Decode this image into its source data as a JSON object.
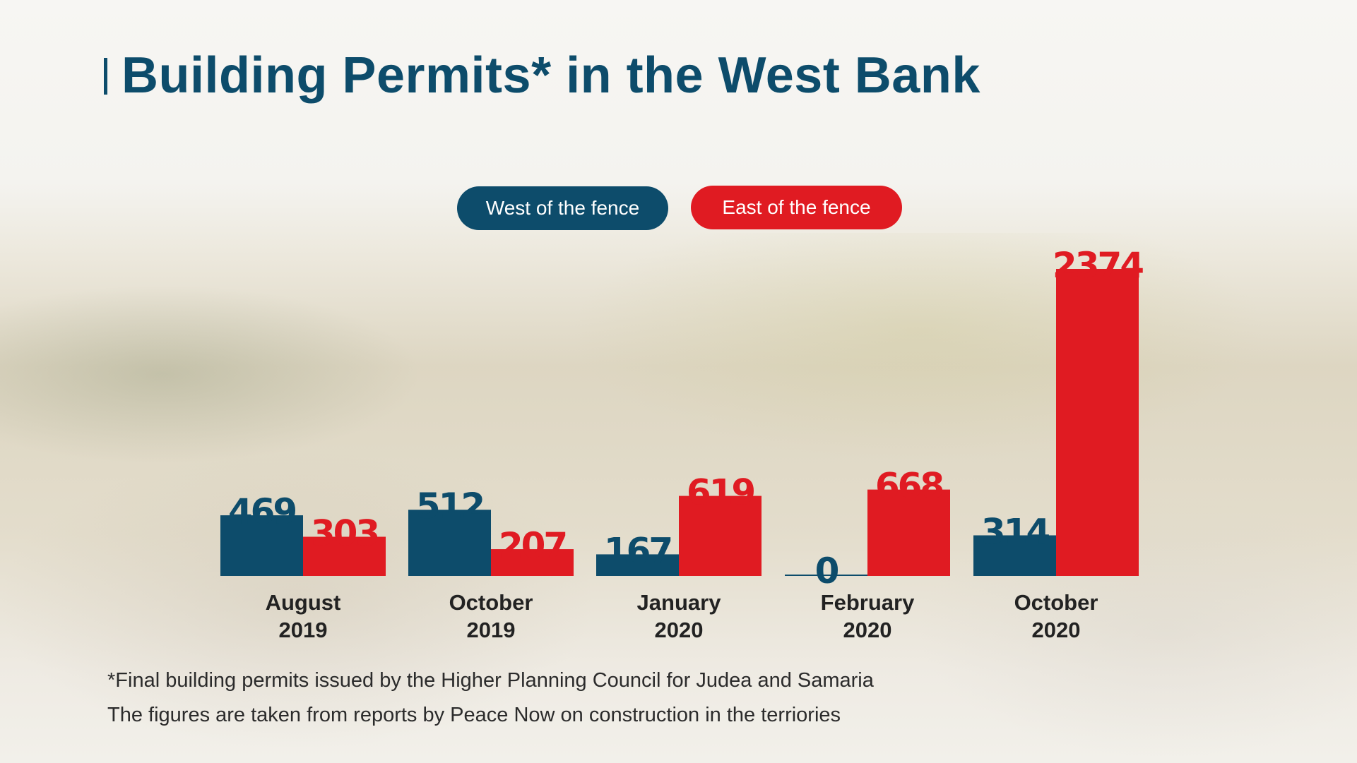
{
  "title": "Building Permits* in the West Bank",
  "footnotes": [
    "*Final building permits issued by the Higher Planning Council for Judea and Samaria",
    "The figures are taken from reports by Peace Now on construction in the terriories"
  ],
  "colors": {
    "west": "#0d4c6b",
    "east": "#e01b22",
    "title": "#0d4c6b"
  },
  "chart_data": {
    "type": "bar",
    "title": "Building Permits* in the West Bank",
    "categories": [
      [
        "August",
        "2019"
      ],
      [
        "October",
        "2019"
      ],
      [
        "January",
        "2020"
      ],
      [
        "February",
        "2020"
      ],
      [
        "October",
        "2020"
      ]
    ],
    "series": [
      {
        "name": "West of the fence",
        "color": "#0d4c6b",
        "values": [
          469,
          512,
          167,
          0,
          314
        ]
      },
      {
        "name": "East of the fence",
        "color": "#e01b22",
        "values": [
          303,
          207,
          619,
          668,
          2374
        ]
      }
    ],
    "ylim": [
      0,
      2374
    ],
    "grid": false,
    "legend": "top-center",
    "data_labels": true
  }
}
